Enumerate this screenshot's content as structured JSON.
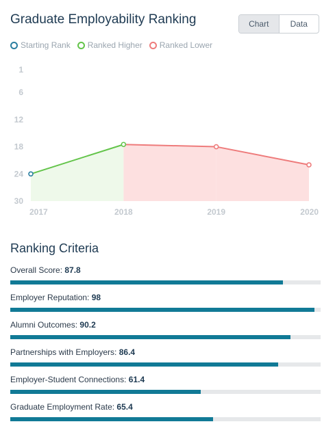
{
  "title": "Graduate Employability Ranking",
  "toggle": {
    "chart_label": "Chart",
    "data_label": "Data",
    "active": "chart"
  },
  "legend": [
    {
      "label": "Starting Rank",
      "color": "#2a7ea0"
    },
    {
      "label": "Ranked Higher",
      "color": "#63c44a"
    },
    {
      "label": "Ranked Lower",
      "color": "#ee7b7b"
    }
  ],
  "chart_data": {
    "type": "line",
    "title": "",
    "x": [
      "2017",
      "2018",
      "2019",
      "2020"
    ],
    "series": [
      {
        "values": [
          24,
          17.5,
          18,
          22
        ]
      }
    ],
    "y_ticks": [
      1,
      6,
      12,
      18,
      24,
      30
    ],
    "ylim": [
      1,
      30
    ],
    "y_inverted": true,
    "grid": false,
    "point_status": [
      "start",
      "higher",
      "lower",
      "lower"
    ]
  },
  "criteria_title": "Ranking Criteria",
  "criteria": [
    {
      "label": "Overall Score:",
      "value": "87.8",
      "fraction": 0.878
    },
    {
      "label": "Employer Reputation:",
      "value": "98",
      "fraction": 0.98
    },
    {
      "label": "Alumni Outcomes:",
      "value": "90.2",
      "fraction": 0.902
    },
    {
      "label": "Partnerships with Employers:",
      "value": "86.4",
      "fraction": 0.864
    },
    {
      "label": "Employer-Student Connections:",
      "value": "61.4",
      "fraction": 0.614
    },
    {
      "label": "Graduate Employment Rate:",
      "value": "65.4",
      "fraction": 0.654
    }
  ]
}
